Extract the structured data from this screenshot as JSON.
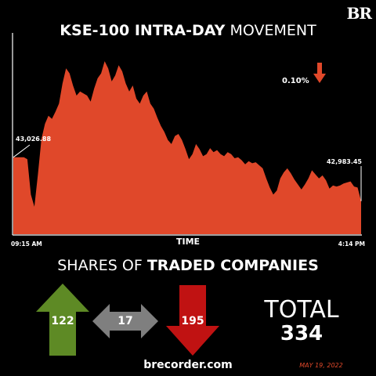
{
  "brand": {
    "logo": "BR",
    "site": "brecorder.com",
    "date": "MAY 19, 2022"
  },
  "title": {
    "bold": "KSE-100 INTRA-DAY",
    "regular": "MOVEMENT"
  },
  "change": {
    "label": "0.10%",
    "direction": "down",
    "color": "#e0482a"
  },
  "chart_data": {
    "type": "area",
    "xlabel": "TIME",
    "x_ticks": [
      "09:15 AM",
      "4:14 PM"
    ],
    "open_label": "43,026.88",
    "close_label": "42,983.45",
    "open": 43026.88,
    "close": 42983.45,
    "ylim": [
      42950,
      43150
    ],
    "fill_color": "#e0482a",
    "values": [
      43026.9,
      43026.9,
      43026.9,
      43027,
      43025,
      42990,
      42978,
      43010,
      43045,
      43060,
      43068,
      43065,
      43072,
      43080,
      43100,
      43115,
      43110,
      43098,
      43088,
      43092,
      43090,
      43088,
      43082,
      43095,
      43105,
      43110,
      43122,
      43115,
      43102,
      43108,
      43118,
      43112,
      43100,
      43092,
      43098,
      43085,
      43080,
      43088,
      43092,
      43080,
      43075,
      43066,
      43058,
      43052,
      43044,
      43040,
      43048,
      43050,
      43044,
      43035,
      43025,
      43030,
      43040,
      43035,
      43028,
      43030,
      43036,
      43032,
      43034,
      43030,
      43028,
      43032,
      43030,
      43026,
      43027,
      43024,
      43020,
      43023,
      43021,
      43022,
      43019,
      43016,
      43006,
      42997,
      42990,
      42994,
      43006,
      43012,
      43016,
      43011,
      43005,
      43000,
      42995,
      43000,
      43006,
      43014,
      43010,
      43006,
      43009,
      43004,
      42996,
      42999,
      42998,
      42999,
      43001,
      43002,
      43003,
      42998,
      42997,
      42983.5
    ]
  },
  "shares": {
    "title_regular": "SHARES OF",
    "title_bold": "TRADED COMPANIES",
    "up": {
      "count": "122",
      "color": "#5e8a25"
    },
    "unchanged": {
      "count": "17",
      "color": "#7f7f7f"
    },
    "down": {
      "count": "195",
      "color": "#c01212"
    },
    "total_label": "TOTAL",
    "total_value": "334"
  }
}
